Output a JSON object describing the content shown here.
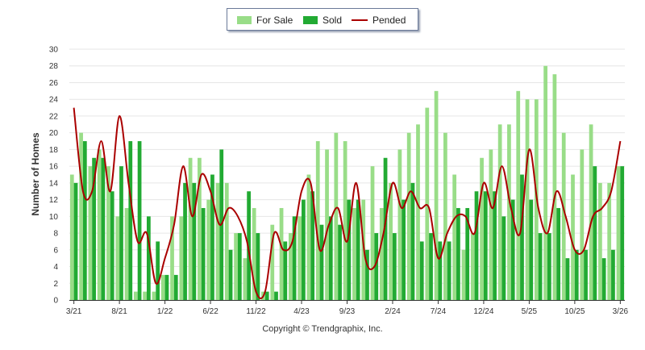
{
  "legend": {
    "for_sale": "For Sale",
    "sold": "Sold",
    "pended": "Pended"
  },
  "copyright": "Copyright © Trendgraphix, Inc.",
  "chart_data": {
    "type": "bar",
    "title": "",
    "ylabel": "Number of Homes",
    "xlabel": "",
    "ylim": [
      0,
      30
    ],
    "yticks": [
      0,
      2,
      4,
      6,
      8,
      10,
      12,
      14,
      16,
      18,
      20,
      22,
      24,
      26,
      28,
      30
    ],
    "grid": true,
    "legend_position": "top-center",
    "colors": {
      "for_sale": "#99dd88",
      "sold": "#22aa33",
      "pended": "#aa0000"
    },
    "categories": [
      "3/21",
      "4/21",
      "5/21",
      "6/21",
      "7/21",
      "8/21",
      "9/21",
      "10/21",
      "11/21",
      "12/21",
      "1/22",
      "2/22",
      "3/22",
      "4/22",
      "5/22",
      "6/22",
      "7/22",
      "8/22",
      "9/22",
      "10/22",
      "11/22",
      "12/22",
      "1/23",
      "2/23",
      "3/23",
      "4/23",
      "5/23",
      "6/23",
      "7/23",
      "8/23",
      "9/23",
      "10/23",
      "11/23",
      "12/23",
      "1/24",
      "2/24",
      "3/24",
      "4/24",
      "5/24",
      "6/24",
      "7/24",
      "8/24",
      "9/24",
      "10/24",
      "11/24",
      "12/24",
      "1/25",
      "2/25",
      "3/25",
      "4/25",
      "5/25",
      "6/25",
      "7/25",
      "8/25",
      "9/25",
      "10/25",
      "11/25",
      "12/25",
      "1/26",
      "2/26",
      "3/26"
    ],
    "tick_labels": [
      "3/21",
      "8/21",
      "1/22",
      "6/22",
      "11/22",
      "4/23",
      "9/23",
      "2/24",
      "7/24",
      "12/24",
      "5/25",
      "10/25",
      "3/26"
    ],
    "series": [
      {
        "name": "For Sale",
        "type": "bar",
        "values": [
          15,
          20,
          16,
          18,
          16,
          10,
          11,
          1,
          1,
          1,
          3,
          10,
          10,
          17,
          17,
          12,
          14,
          14,
          8,
          5,
          11,
          1,
          9,
          11,
          8,
          10,
          15,
          19,
          18,
          20,
          19,
          11,
          12,
          16,
          11,
          14,
          18,
          20,
          21,
          23,
          25,
          20,
          15,
          6,
          8,
          17,
          18,
          21,
          21,
          25,
          24,
          24,
          28,
          27,
          20,
          15,
          18,
          21,
          14,
          14,
          16
        ]
      },
      {
        "name": "Sold",
        "type": "bar",
        "values": [
          14,
          19,
          17,
          17,
          13,
          16,
          19,
          19,
          10,
          7,
          3,
          3,
          14,
          14,
          11,
          15,
          18,
          6,
          8,
          13,
          8,
          1,
          1,
          7,
          10,
          12,
          13,
          9,
          10,
          9,
          12,
          12,
          6,
          8,
          17,
          8,
          12,
          14,
          7,
          8,
          7,
          7,
          11,
          11,
          13,
          13,
          13,
          10,
          12,
          15,
          12,
          8,
          8,
          11,
          5,
          6,
          6,
          16,
          5,
          6,
          16
        ]
      },
      {
        "name": "Pended",
        "type": "line",
        "values": [
          23,
          13,
          13,
          19,
          13,
          22,
          14,
          7,
          8,
          2,
          5,
          9,
          16,
          10,
          15,
          13,
          9,
          11,
          10,
          7,
          1,
          1,
          8,
          6,
          7,
          13,
          14,
          6,
          9,
          11,
          7,
          14,
          5,
          4,
          8,
          14,
          11,
          13,
          11,
          11,
          5,
          8,
          10,
          10,
          8,
          14,
          11,
          16,
          11,
          8,
          18,
          11,
          8,
          13,
          10,
          6,
          6,
          10,
          11,
          13,
          19
        ]
      }
    ]
  }
}
